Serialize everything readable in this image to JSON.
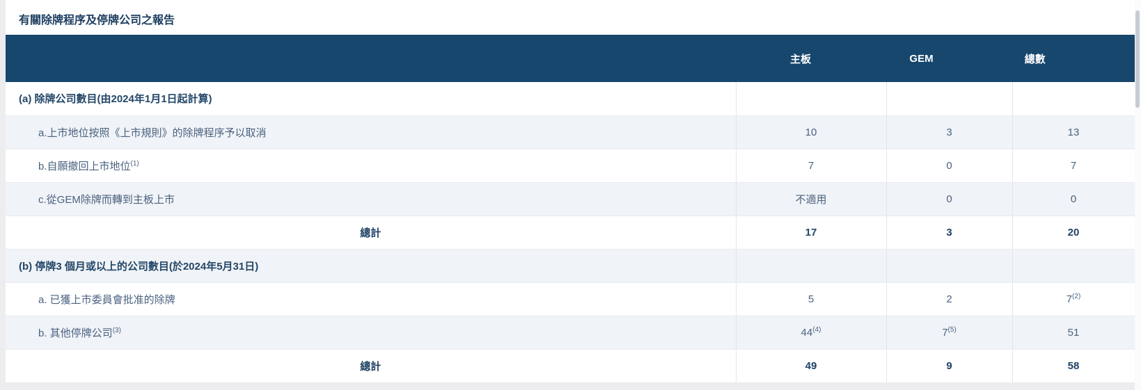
{
  "title": "有關除牌程序及停牌公司之報告",
  "colors": {
    "header_bg": "#17476d",
    "header_text": "#ffffff",
    "stripe_bg": "#f0f3f7",
    "title_text": "#1d3e60",
    "body_text": "#4b6280",
    "bold_text": "#1f4265"
  },
  "table": {
    "columns": [
      "",
      "主板",
      "GEM",
      "總數"
    ],
    "rows": [
      {
        "type": "section",
        "stripe": "white",
        "label": "(a) 除牌公司數目(由2024年1月1日起計算)",
        "cells": [
          "",
          "",
          ""
        ]
      },
      {
        "type": "item",
        "stripe": "light",
        "label": "a.上市地位按照《上市規則》的除牌程序予以取消",
        "cells": [
          "10",
          "3",
          "13"
        ]
      },
      {
        "type": "item",
        "stripe": "white",
        "label": "b.自願撤回上市地位",
        "label_sup": "(1)",
        "cells": [
          "7",
          "0",
          "7"
        ]
      },
      {
        "type": "item",
        "stripe": "light",
        "label": "c.從GEM除牌而轉到主板上市",
        "cells": [
          "不適用",
          "0",
          "0"
        ]
      },
      {
        "type": "total",
        "stripe": "white",
        "label": "總計",
        "cells": [
          "17",
          "3",
          "20"
        ]
      },
      {
        "type": "section",
        "stripe": "light",
        "label": "(b) 停牌3 個月或以上的公司數目(於2024年5月31日)",
        "cells": [
          "",
          "",
          ""
        ]
      },
      {
        "type": "item",
        "stripe": "white",
        "label": "a. 已獲上市委員會批准的除牌",
        "cells": [
          "5",
          "2",
          {
            "v": "7",
            "sup": "(2)"
          }
        ]
      },
      {
        "type": "item",
        "stripe": "light",
        "label": "b. 其他停牌公司",
        "label_sup": "(3)",
        "cells": [
          {
            "v": "44",
            "sup": "(4)"
          },
          {
            "v": "7",
            "sup": "(5)"
          },
          "51"
        ]
      },
      {
        "type": "total",
        "stripe": "white",
        "label": "總計",
        "cells": [
          "49",
          "9",
          "58"
        ]
      }
    ]
  }
}
